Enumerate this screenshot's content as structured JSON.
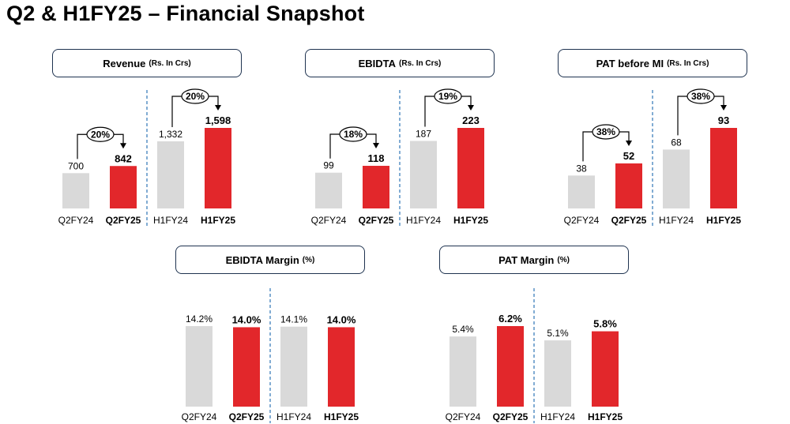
{
  "page": {
    "title": "Q2 & H1FY25 – Financial Snapshot"
  },
  "colors": {
    "prior": "#d9d9d9",
    "current": "#e2272b",
    "divider": "#2e75b6",
    "header_border": "#1f3350"
  },
  "chart_data": [
    {
      "type": "bar",
      "title": "Revenue",
      "unit": "(Rs. In Crs)",
      "categories": [
        "Q2FY24",
        "Q2FY25",
        "H1FY24",
        "H1FY25"
      ],
      "values": [
        700,
        842,
        1332,
        1598
      ],
      "value_labels": [
        "700",
        "842",
        "1,332",
        "1,598"
      ],
      "growth_labels": [
        "20%",
        "20%"
      ]
    },
    {
      "type": "bar",
      "title": "EBIDTA",
      "unit": "(Rs. In Crs)",
      "categories": [
        "Q2FY24",
        "Q2FY25",
        "H1FY24",
        "H1FY25"
      ],
      "values": [
        99,
        118,
        187,
        223
      ],
      "value_labels": [
        "99",
        "118",
        "187",
        "223"
      ],
      "growth_labels": [
        "18%",
        "19%"
      ]
    },
    {
      "type": "bar",
      "title": "PAT before MI",
      "unit": "(Rs. In Crs)",
      "categories": [
        "Q2FY24",
        "Q2FY25",
        "H1FY24",
        "H1FY25"
      ],
      "values": [
        38,
        52,
        68,
        93
      ],
      "value_labels": [
        "38",
        "52",
        "68",
        "93"
      ],
      "growth_labels": [
        "38%",
        "38%"
      ]
    },
    {
      "type": "bar",
      "title": "EBIDTA Margin",
      "unit": "(%)",
      "categories": [
        "Q2FY24",
        "Q2FY25",
        "H1FY24",
        "H1FY25"
      ],
      "values": [
        14.2,
        14.0,
        14.1,
        14.0
      ],
      "value_labels": [
        "14.2%",
        "14.0%",
        "14.1%",
        "14.0%"
      ],
      "growth_labels": []
    },
    {
      "type": "bar",
      "title": "PAT Margin",
      "unit": "(%)",
      "categories": [
        "Q2FY24",
        "Q2FY25",
        "H1FY24",
        "H1FY25"
      ],
      "values": [
        5.4,
        6.2,
        5.1,
        5.8
      ],
      "value_labels": [
        "5.4%",
        "6.2%",
        "5.1%",
        "5.8%"
      ],
      "growth_labels": []
    }
  ]
}
